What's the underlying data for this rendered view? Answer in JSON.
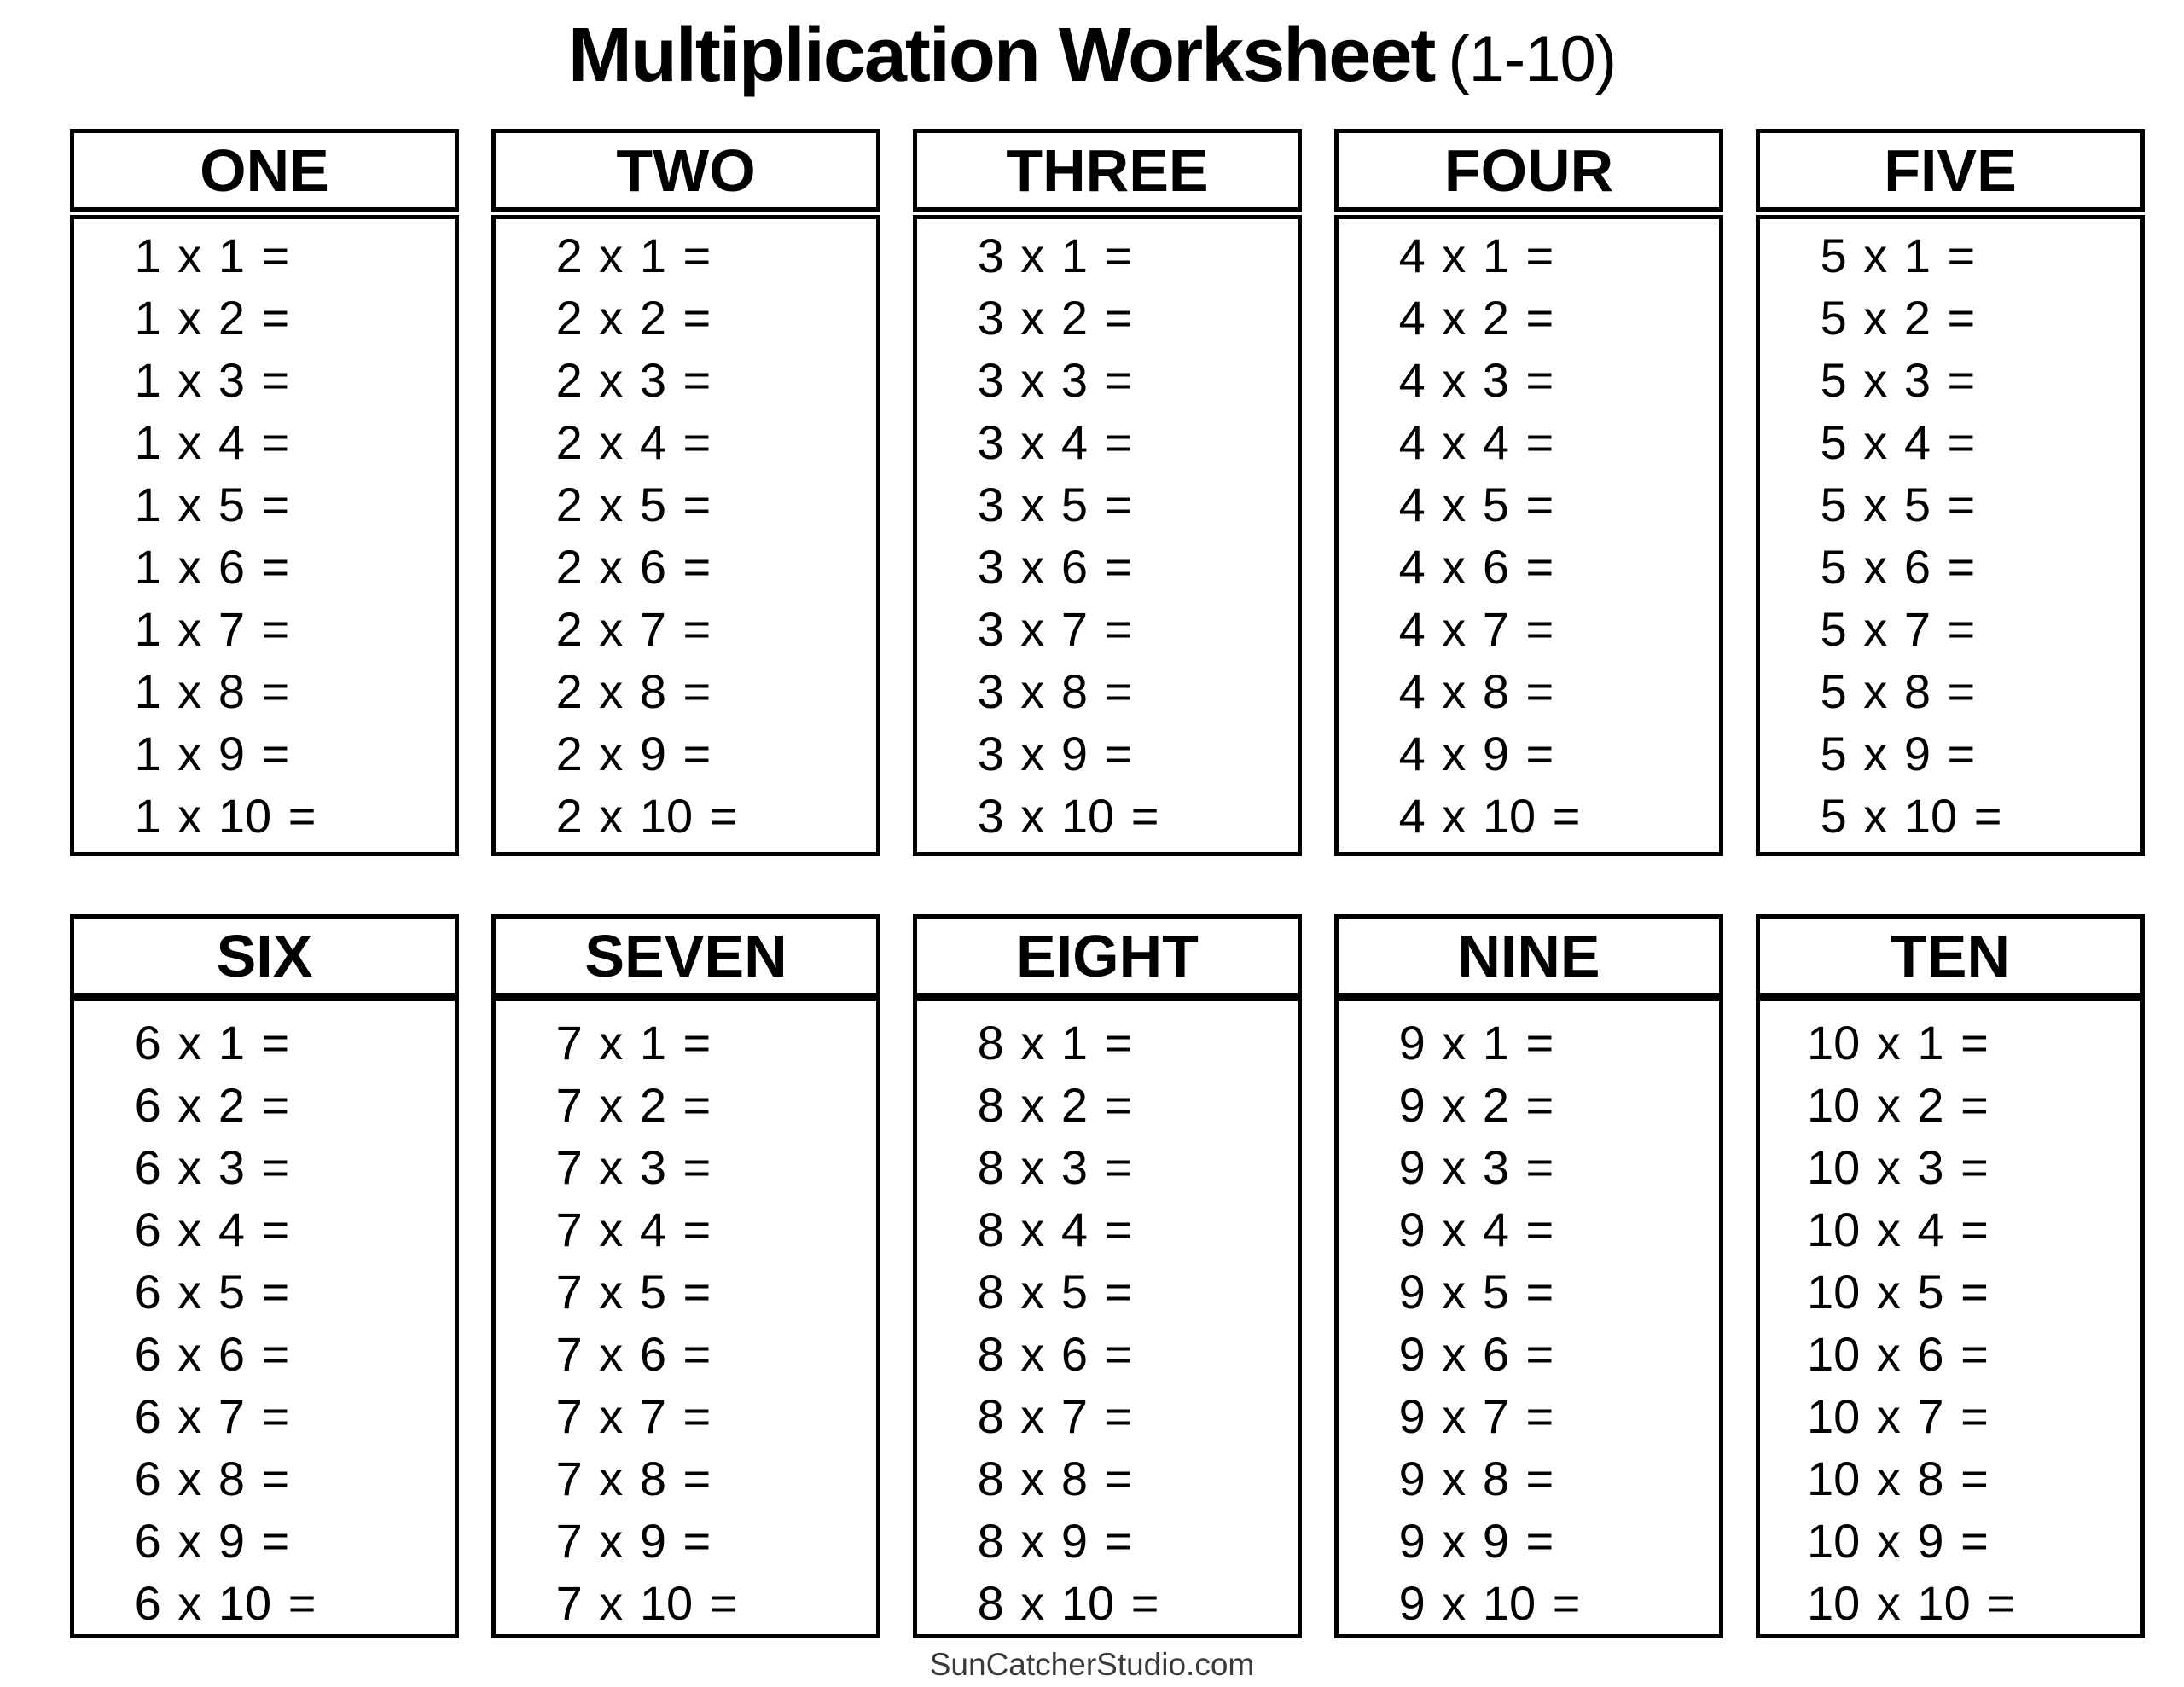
{
  "title": {
    "main": "Multiplication Worksheet",
    "suffix": "(1-10)"
  },
  "footer": {
    "site": "SunCatcherStudio.com"
  },
  "colors": {
    "background": "#ffffff",
    "border_line": "#000000",
    "text": "#000000",
    "footer_text": "#3a3a3a"
  },
  "tables": [
    {
      "header": "ONE",
      "factor": 1,
      "problems": [
        "1 x 1 =",
        "1 x 2 =",
        "1 x 3 =",
        "1 x 4 =",
        "1 x 5 =",
        "1 x 6 =",
        "1 x 7 =",
        "1 x 8 =",
        "1 x 9 =",
        "1 x 10 ="
      ]
    },
    {
      "header": "TWO",
      "factor": 2,
      "problems": [
        "2 x 1 =",
        "2 x 2 =",
        "2 x 3 =",
        "2 x 4 =",
        "2 x 5 =",
        "2 x 6 =",
        "2 x 7 =",
        "2 x 8 =",
        "2 x 9 =",
        "2 x 10 ="
      ]
    },
    {
      "header": "THREE",
      "factor": 3,
      "problems": [
        "3 x 1 =",
        "3 x 2 =",
        "3 x 3 =",
        "3 x 4 =",
        "3 x 5 =",
        "3 x 6 =",
        "3 x 7 =",
        "3 x 8 =",
        "3 x 9 =",
        "3 x 10 ="
      ]
    },
    {
      "header": "FOUR",
      "factor": 4,
      "problems": [
        "4 x 1 =",
        "4 x 2 =",
        "4 x 3 =",
        "4 x 4 =",
        "4 x 5 =",
        "4 x 6 =",
        "4 x 7 =",
        "4 x 8 =",
        "4 x 9 =",
        "4 x 10 ="
      ]
    },
    {
      "header": "FIVE",
      "factor": 5,
      "problems": [
        "5 x 1 =",
        "5 x 2 =",
        "5 x 3 =",
        "5 x 4 =",
        "5 x 5 =",
        "5 x 6 =",
        "5 x 7 =",
        "5 x 8 =",
        "5 x 9 =",
        "5 x 10 ="
      ]
    },
    {
      "header": "SIX",
      "factor": 6,
      "problems": [
        "6 x 1 =",
        "6 x 2 =",
        "6 x 3 =",
        "6 x 4 =",
        "6 x 5 =",
        "6 x 6 =",
        "6 x 7 =",
        "6 x 8 =",
        "6 x 9 =",
        "6 x 10 ="
      ]
    },
    {
      "header": "SEVEN",
      "factor": 7,
      "problems": [
        "7 x 1 =",
        "7 x 2 =",
        "7 x 3 =",
        "7 x 4 =",
        "7 x 5 =",
        "7 x 6 =",
        "7 x 7 =",
        "7 x 8 =",
        "7 x 9 =",
        "7 x 10 ="
      ]
    },
    {
      "header": "EIGHT",
      "factor": 8,
      "problems": [
        "8 x 1 =",
        "8 x 2 =",
        "8 x 3 =",
        "8 x 4 =",
        "8 x 5 =",
        "8 x 6 =",
        "8 x 7 =",
        "8 x 8 =",
        "8 x 9 =",
        "8 x 10 ="
      ]
    },
    {
      "header": "NINE",
      "factor": 9,
      "problems": [
        "9 x 1 =",
        "9 x 2 =",
        "9 x 3 =",
        "9 x 4 =",
        "9 x 5 =",
        "9 x 6 =",
        "9 x 7 =",
        "9 x 8 =",
        "9 x 9 =",
        "9 x 10 ="
      ]
    },
    {
      "header": "TEN",
      "factor": 10,
      "problems": [
        "10 x 1 =",
        "10 x 2 =",
        "10 x 3 =",
        "10 x 4 =",
        "10 x 5 =",
        "10 x 6 =",
        "10 x 7 =",
        "10 x 8 =",
        "10 x 9 =",
        "10 x 10 ="
      ]
    }
  ]
}
